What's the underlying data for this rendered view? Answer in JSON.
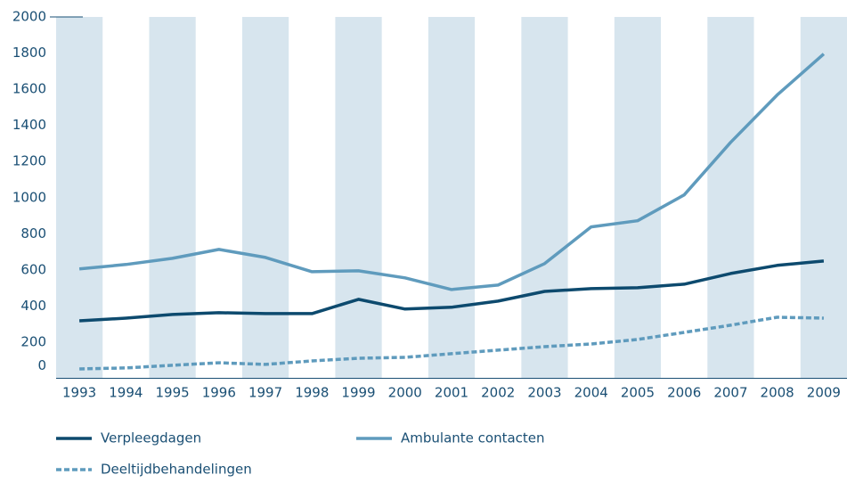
{
  "chart_data": {
    "type": "line",
    "categories": [
      "1993",
      "1994",
      "1995",
      "1996",
      "1997",
      "1998",
      "1999",
      "2000",
      "2001",
      "2002",
      "2003",
      "2004",
      "2005",
      "2006",
      "2007",
      "2008",
      "2009"
    ],
    "series": [
      {
        "name": "Verpleegdagen",
        "color": "#0d4a6e",
        "dash": false,
        "values": [
          318,
          333,
          353,
          363,
          358,
          358,
          437,
          383,
          393,
          427,
          481,
          496,
          501,
          521,
          580,
          625,
          649
        ]
      },
      {
        "name": "Ambulante contacten",
        "color": "#5f9bbd",
        "dash": false,
        "values": [
          605,
          630,
          664,
          713,
          669,
          590,
          595,
          556,
          491,
          516,
          635,
          838,
          872,
          1015,
          1306,
          1568,
          1795
        ]
      },
      {
        "name": "Deeltijdbehandelingen",
        "color": "#5f9bbd",
        "dash": true,
        "values": [
          52,
          57,
          72,
          86,
          77,
          96,
          111,
          116,
          136,
          156,
          175,
          190,
          215,
          254,
          294,
          338,
          333
        ]
      }
    ],
    "ylim": [
      0,
      2000
    ],
    "yticks": [
      0,
      200,
      400,
      600,
      800,
      1000,
      1200,
      1400,
      1600,
      1800,
      2000
    ],
    "band_color": "#d7e5ee"
  }
}
